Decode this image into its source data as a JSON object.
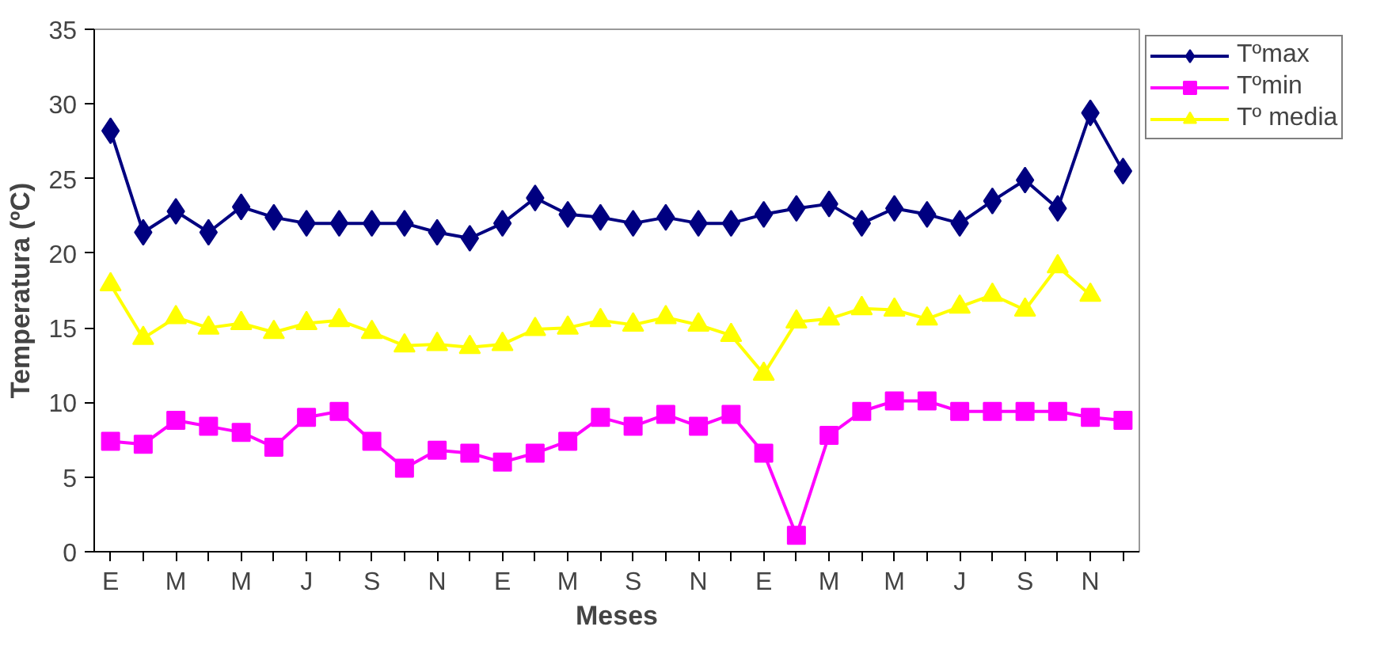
{
  "chart_data": {
    "type": "line",
    "xlabel": "Meses",
    "ylabel": "Temperatura (ºC)",
    "categories": [
      "E",
      null,
      "M",
      null,
      "M",
      null,
      "J",
      null,
      "S",
      null,
      "N",
      null,
      "E",
      null,
      "M",
      null,
      "S",
      null,
      "N",
      null,
      "E",
      null,
      "M",
      null,
      "M",
      null,
      "J",
      null,
      "S",
      null,
      "N",
      null
    ],
    "series": [
      {
        "name": "Tºmax",
        "color": "#000080",
        "marker": "diamond",
        "values": [
          28.2,
          21.4,
          22.8,
          21.4,
          23.1,
          22.4,
          22,
          22,
          22,
          22,
          21.4,
          21,
          22,
          23.7,
          22.6,
          22.4,
          22,
          22.4,
          22,
          22,
          22.6,
          23,
          23.3,
          22,
          23,
          22.6,
          22,
          23.5,
          24.9,
          23,
          29.4,
          25.5
        ]
      },
      {
        "name": "Tºmin",
        "color": "#ff00ff",
        "marker": "square",
        "values": [
          7.4,
          7.2,
          8.8,
          8.4,
          8,
          7,
          9,
          9.4,
          7.4,
          5.6,
          6.8,
          6.6,
          6,
          6.6,
          7.4,
          9,
          8.4,
          9.2,
          8.4,
          9.2,
          6.6,
          1.1,
          7.8,
          9.4,
          10.1,
          10.1,
          9.4,
          9.4,
          9.4,
          9.4,
          9,
          8.8
        ]
      },
      {
        "name": "Tº media",
        "color": "#ffff00",
        "marker": "triangle",
        "values": [
          17.9,
          14.3,
          15.7,
          15,
          15.3,
          14.7,
          15.3,
          15.5,
          14.7,
          13.8,
          13.9,
          13.7,
          13.9,
          14.9,
          15,
          15.5,
          15.2,
          15.7,
          15.2,
          14.5,
          11.9,
          15.4,
          15.6,
          16.3,
          16.2,
          15.6,
          16.4,
          17.2,
          16.2,
          19.1,
          17.2,
          null
        ]
      }
    ],
    "ylim": [
      0,
      35
    ],
    "yticks": [
      0,
      5,
      10,
      15,
      20,
      25,
      30,
      35
    ],
    "grid": false,
    "legend": "right",
    "line_style": "solid"
  }
}
